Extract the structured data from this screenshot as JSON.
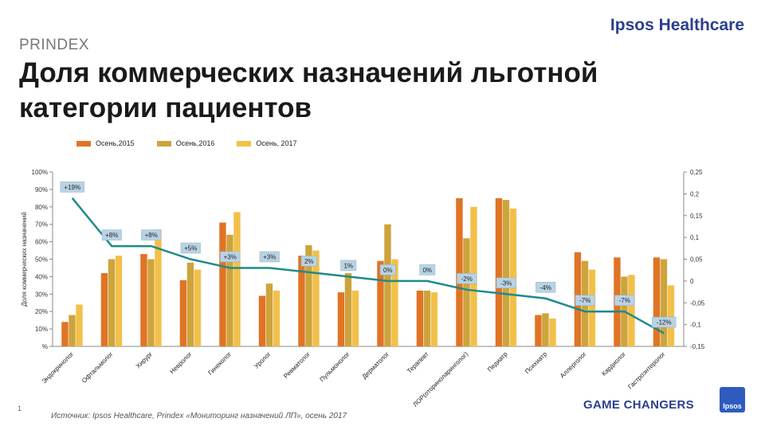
{
  "header": {
    "brand": "Ipsos Healthcare",
    "kicker": "PRINDEX",
    "title": "Доля коммерческих назначений льготной категории пациентов"
  },
  "footer": {
    "page_number": "1",
    "source": "Источник: Ipsos Healthcare, Prindex «Мониторинг назначений ЛП», осень 2017",
    "tagline": "GAME CHANGERS",
    "logo_text": "Ipsos"
  },
  "colors": {
    "s2015": "#e07425",
    "s2016": "#cda43c",
    "s2017": "#f2c04a",
    "line": "#1f8a8a",
    "brand": "#2b3f8c"
  },
  "chart_data": {
    "type": "bar",
    "categories": [
      "Эндокринолог",
      "Офтальмолог",
      "Хирург",
      "Невролог",
      "Гинеколог",
      "Уролог",
      "Ревматолог",
      "Пульмонолог",
      "Дерматолог",
      "Терапевт",
      "ЛОР(оториноларинголог)",
      "Педиатр",
      "Психиатр",
      "Аллерголог",
      "Кардиолог",
      "Гастроэнтеролог"
    ],
    "series": [
      {
        "name": "Осень,2015",
        "values": [
          14,
          42,
          53,
          38,
          71,
          29,
          52,
          31,
          49,
          32,
          85,
          85,
          18,
          54,
          51,
          51
        ]
      },
      {
        "name": "Осень,2016",
        "values": [
          18,
          50,
          50,
          48,
          64,
          36,
          58,
          42,
          70,
          32,
          62,
          84,
          19,
          49,
          40,
          50
        ]
      },
      {
        "name": "Осень, 2017",
        "values": [
          24,
          52,
          67,
          44,
          77,
          32,
          55,
          32,
          50,
          31,
          80,
          79,
          16,
          44,
          41,
          35
        ]
      }
    ],
    "line": {
      "values": [
        0.19,
        0.08,
        0.08,
        0.05,
        0.03,
        0.03,
        0.02,
        0.01,
        0.0,
        0.0,
        -0.02,
        -0.03,
        -0.04,
        -0.07,
        -0.07,
        -0.12
      ],
      "labels": [
        "+19%",
        "+8%",
        "+8%",
        "+5%",
        "+3%",
        "+3%",
        "2%",
        "1%",
        "0%",
        "0%",
        "-2%",
        "-3%",
        "-4%",
        "-7%",
        "-7%",
        "-12%"
      ]
    },
    "ylabel": "Доля коммерческих назначений",
    "ylim": [
      0,
      100
    ],
    "y_ticks": [
      "%",
      "10%",
      "20%",
      "30%",
      "40%",
      "50%",
      "60%",
      "70%",
      "80%",
      "90%",
      "100%"
    ],
    "y2lim": [
      -0.15,
      0.25
    ],
    "y2_ticks": [
      "-0,15",
      "-0,1",
      "-0,05",
      "0",
      "0,05",
      "0,1",
      "0,15",
      "0,2",
      "0,25"
    ],
    "grid": false,
    "legend_position": "top"
  }
}
